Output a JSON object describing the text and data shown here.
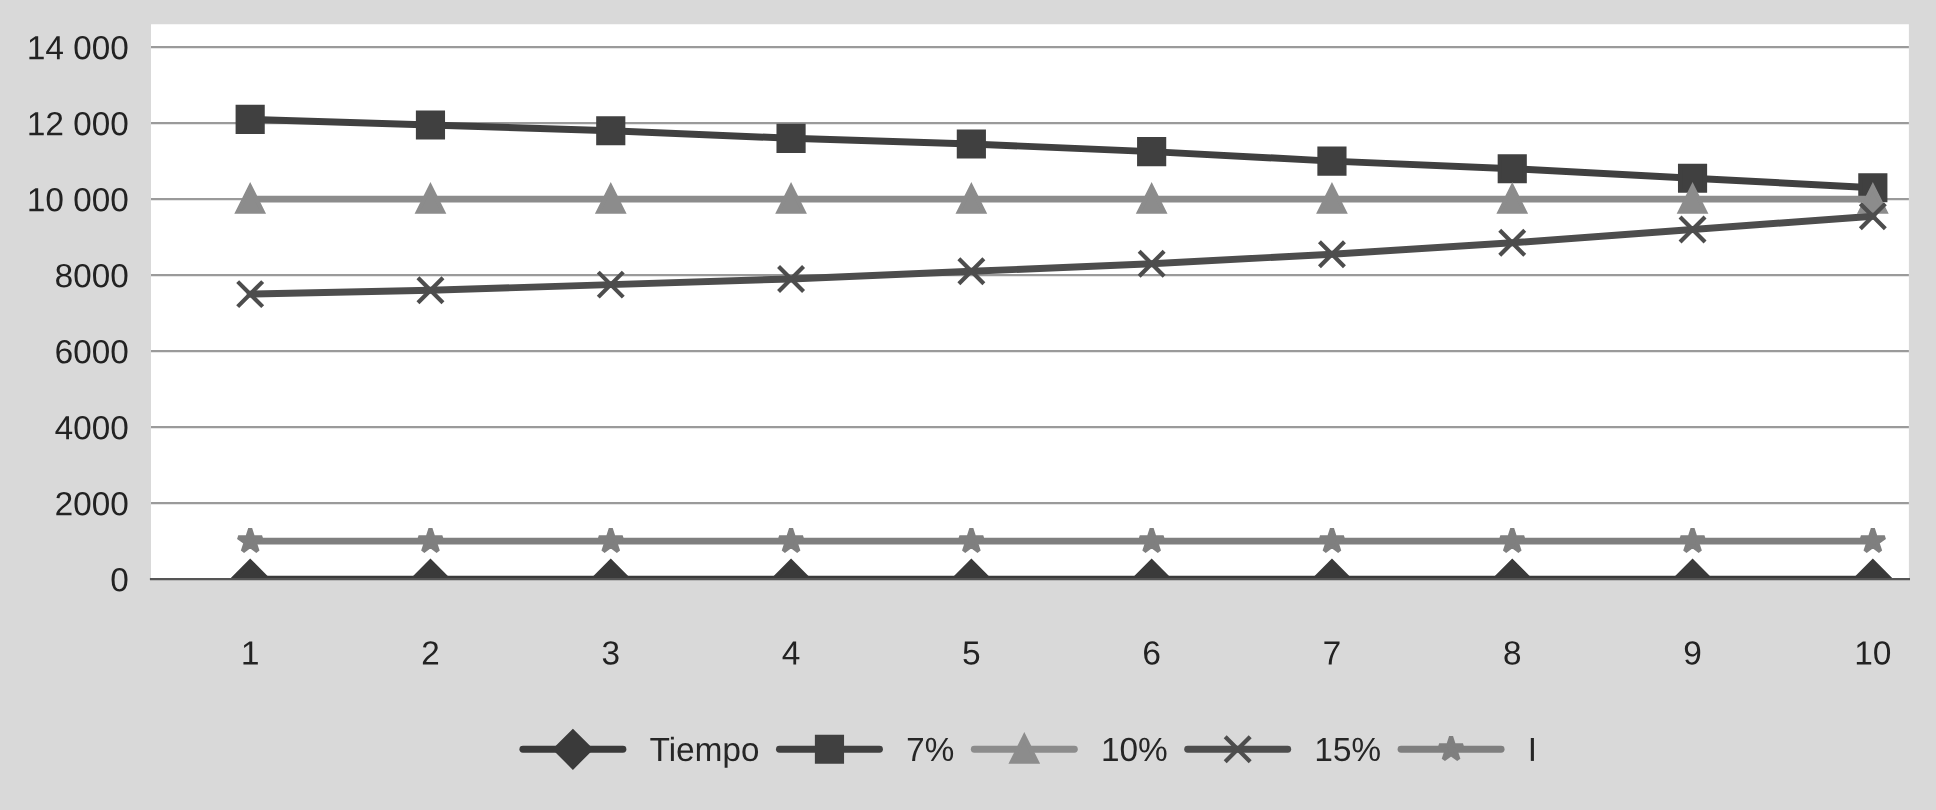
{
  "chart_data": {
    "type": "line",
    "categories": [
      "1",
      "2",
      "3",
      "4",
      "5",
      "6",
      "7",
      "8",
      "9",
      "10"
    ],
    "series": [
      {
        "name": "Tiempo",
        "color": "#3a3a3a",
        "marker": "diamond",
        "values": [
          0,
          0,
          0,
          0,
          0,
          0,
          0,
          0,
          0,
          0
        ]
      },
      {
        "name": "7%",
        "color": "#404040",
        "marker": "square",
        "values": [
          12100,
          11950,
          11800,
          11600,
          11450,
          11250,
          11000,
          10800,
          10550,
          10300
        ]
      },
      {
        "name": "10%",
        "color": "#8c8c8c",
        "marker": "triangle",
        "values": [
          10000,
          10000,
          10000,
          10000,
          10000,
          10000,
          10000,
          10000,
          10000,
          10000
        ]
      },
      {
        "name": "15%",
        "color": "#4d4d4d",
        "marker": "cross",
        "values": [
          7500,
          7600,
          7750,
          7900,
          8100,
          8300,
          8550,
          8850,
          9200,
          9550
        ]
      },
      {
        "name": "I",
        "color": "#7f7f7f",
        "marker": "star",
        "values": [
          1000,
          1000,
          1000,
          1000,
          1000,
          1000,
          1000,
          1000,
          1000,
          1000
        ]
      }
    ],
    "ylim": [
      0,
      14600
    ],
    "yticks": [
      0,
      2000,
      4000,
      6000,
      8000,
      {
        "value": 10000,
        "label": "10 000"
      },
      {
        "value": 12000,
        "label": "12 000"
      },
      {
        "value": 14000,
        "label": "14 000"
      }
    ],
    "grid": "y",
    "legend": "bottom",
    "line_style": "solid"
  }
}
